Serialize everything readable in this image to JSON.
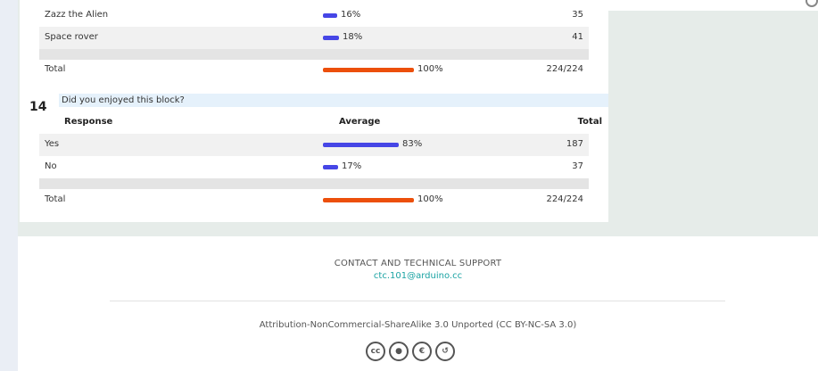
{
  "previous_question": {
    "rows": [
      {
        "label": "Zazz the Alien",
        "percent": "16%",
        "fraction": 0.16,
        "total": "35"
      },
      {
        "label": "Space rover",
        "percent": "18%",
        "fraction": 0.18,
        "total": "41"
      }
    ],
    "summary": {
      "label": "Total",
      "percent": "100%",
      "fraction": 1.0,
      "total": "224/224"
    }
  },
  "question": {
    "number": "14",
    "title": "Did you enjoyed this block?",
    "headers": {
      "response": "Response",
      "average": "Average",
      "total": "Total"
    },
    "rows": [
      {
        "label": "Yes",
        "percent": "83%",
        "fraction": 0.83,
        "total": "187"
      },
      {
        "label": "No",
        "percent": "17%",
        "fraction": 0.17,
        "total": "37"
      }
    ],
    "summary": {
      "label": "Total",
      "percent": "100%",
      "fraction": 1.0,
      "total": "224/224"
    }
  },
  "footer": {
    "contact_label": "CONTACT AND TECHNICAL SUPPORT",
    "email": "ctc.101@arduino.cc",
    "license": "Attribution-NonCommercial-ShareAlike 3.0 Unported (CC BY-NC-SA 3.0)",
    "license_icons": [
      "cc-icon",
      "by-icon",
      "nc-icon",
      "sa-icon"
    ]
  },
  "colors": {
    "bar_blue": "#4646e6",
    "bar_orange": "#ec4f0b",
    "link": "#1aa3a3"
  }
}
